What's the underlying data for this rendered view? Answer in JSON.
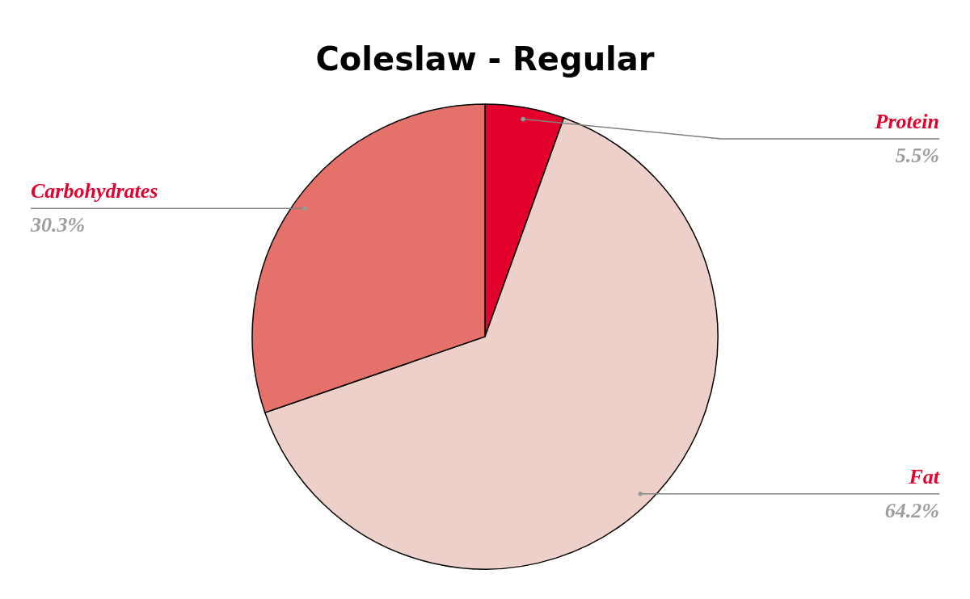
{
  "chart_data": {
    "type": "pie",
    "title": "Coleslaw - Regular",
    "categories": [
      "Protein",
      "Fat",
      "Carbohydrates"
    ],
    "values": [
      5.5,
      64.2,
      30.3
    ],
    "colors": [
      "#e3002c",
      "#eed0cb",
      "#e5716b"
    ],
    "value_labels": [
      "5.5%",
      "64.2%",
      "30.3%"
    ]
  }
}
